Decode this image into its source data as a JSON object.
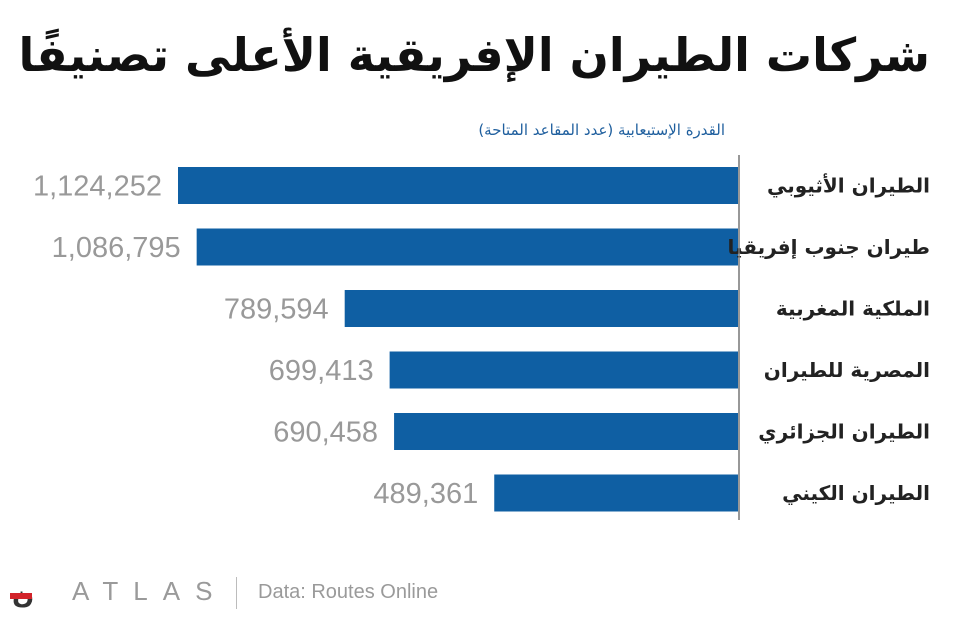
{
  "chart_data": {
    "type": "bar",
    "orientation": "horizontal",
    "title": "شركات الطيران الإفريقية الأعلى تصنيفًا",
    "subtitle": "القدرة الإستيعابية (عدد المقاعد المتاحة)",
    "categories": [
      "الطيران الأثيوبي",
      "طيران جنوب إفريقيا",
      "الملكية المغربية",
      "المصرية للطيران",
      "الطيران الجزائري",
      "الطيران الكيني"
    ],
    "value_labels": [
      "1,124,252",
      "1,086,795",
      "789,594",
      "699,413",
      "690,458",
      "489,361"
    ],
    "values": [
      1124252,
      1086795,
      789594,
      699413,
      690458,
      489361
    ],
    "xlim": [
      0,
      1124252
    ],
    "bar_color": "#0f5fa3",
    "label_color": "#999999",
    "grid": false
  },
  "footer": {
    "brand": "ATLAS",
    "source": "Data: Routes Online"
  }
}
